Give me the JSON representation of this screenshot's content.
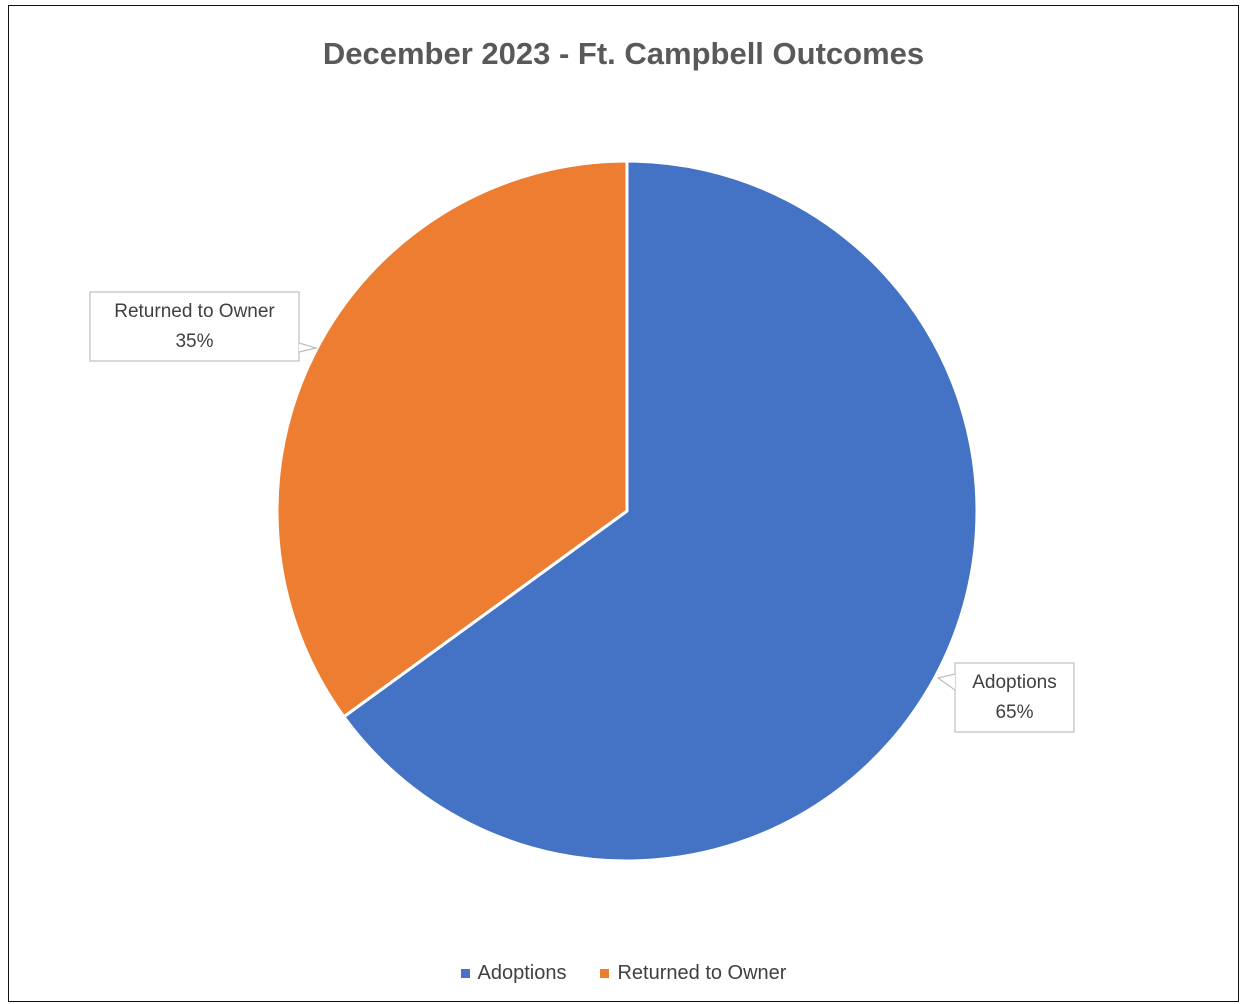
{
  "chart_data": {
    "type": "pie",
    "title": "December 2023 - Ft. Campbell Outcomes",
    "categories": [
      "Adoptions",
      "Returned to Owner"
    ],
    "values": [
      65,
      35
    ],
    "value_labels": [
      "65%",
      "35%"
    ],
    "colors": [
      "#4472C4",
      "#ED7D31"
    ],
    "start_angle_deg": 0,
    "direction": "clockwise",
    "data_labels": "outside-callout",
    "legend": {
      "position": "bottom",
      "entries": [
        "Adoptions",
        "Returned to Owner"
      ]
    }
  }
}
